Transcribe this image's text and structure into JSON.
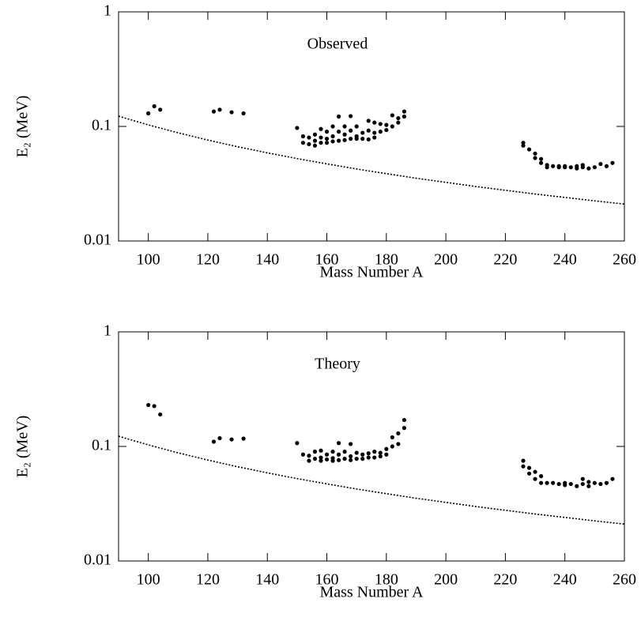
{
  "chart_data": [
    {
      "type": "scatter",
      "annotation": "Observed",
      "x_label": "Mass Number A",
      "y_label": "E₂   (MeV)",
      "xlim": [
        90,
        260
      ],
      "xticks": [
        100,
        120,
        140,
        160,
        180,
        200,
        220,
        240,
        260
      ],
      "ylim": [
        0.01,
        1
      ],
      "yticks": [
        0.01,
        0.1,
        1
      ],
      "log_y": true,
      "series": [
        {
          "mode": "markers",
          "color": "#000000",
          "x": [
            100,
            102,
            104,
            122,
            124,
            128,
            132,
            150,
            152,
            152,
            154,
            154,
            156,
            156,
            156,
            158,
            158,
            158,
            160,
            160,
            160,
            162,
            162,
            162,
            164,
            164,
            164,
            166,
            166,
            166,
            168,
            168,
            168,
            170,
            170,
            170,
            172,
            172,
            174,
            174,
            174,
            176,
            176,
            176,
            178,
            178,
            180,
            180,
            182,
            182,
            184,
            184,
            186,
            186,
            226,
            226,
            228,
            230,
            230,
            232,
            232,
            234,
            234,
            236,
            238,
            238,
            240,
            240,
            242,
            244,
            244,
            246,
            246,
            248,
            250,
            252,
            254,
            256
          ],
          "values": [
            0.13,
            0.15,
            0.14,
            0.135,
            0.14,
            0.133,
            0.13,
            0.097,
            0.082,
            0.072,
            0.08,
            0.07,
            0.085,
            0.075,
            0.068,
            0.095,
            0.08,
            0.072,
            0.09,
            0.078,
            0.072,
            0.1,
            0.082,
            0.074,
            0.122,
            0.09,
            0.075,
            0.1,
            0.085,
            0.076,
            0.123,
            0.092,
            0.078,
            0.1,
            0.082,
            0.078,
            0.088,
            0.078,
            0.112,
            0.092,
            0.077,
            0.108,
            0.088,
            0.08,
            0.105,
            0.09,
            0.103,
            0.093,
            0.125,
            0.1,
            0.118,
            0.108,
            0.135,
            0.122,
            0.072,
            0.068,
            0.063,
            0.058,
            0.053,
            0.052,
            0.048,
            0.046,
            0.044,
            0.045,
            0.045,
            0.044,
            0.045,
            0.044,
            0.044,
            0.045,
            0.043,
            0.046,
            0.044,
            0.043,
            0.044,
            0.047,
            0.045,
            0.048
          ]
        },
        {
          "mode": "dotted-line",
          "color": "#000000",
          "x": [
            90,
            100,
            110,
            120,
            130,
            140,
            150,
            160,
            170,
            180,
            190,
            200,
            210,
            220,
            230,
            240,
            250,
            260
          ],
          "values": [
            0.1229,
            0.1031,
            0.088,
            0.076,
            0.0665,
            0.0588,
            0.0524,
            0.0471,
            0.0425,
            0.0387,
            0.0353,
            0.0325,
            0.0299,
            0.0277,
            0.0257,
            0.024,
            0.0224,
            0.021
          ]
        }
      ]
    },
    {
      "type": "scatter",
      "annotation": "Theory",
      "x_label": "Mass Number A",
      "y_label": "E₂   (MeV)",
      "xlim": [
        90,
        260
      ],
      "xticks": [
        100,
        120,
        140,
        160,
        180,
        200,
        220,
        240,
        260
      ],
      "ylim": [
        0.01,
        1
      ],
      "yticks": [
        0.01,
        0.1,
        1
      ],
      "log_y": true,
      "series": [
        {
          "mode": "markers",
          "color": "#000000",
          "x": [
            100,
            102,
            104,
            122,
            124,
            128,
            132,
            150,
            152,
            154,
            154,
            156,
            156,
            158,
            158,
            158,
            160,
            160,
            162,
            162,
            162,
            164,
            164,
            164,
            166,
            166,
            168,
            168,
            168,
            170,
            170,
            172,
            172,
            174,
            174,
            176,
            176,
            178,
            178,
            180,
            180,
            182,
            182,
            184,
            184,
            186,
            186,
            226,
            226,
            228,
            228,
            230,
            230,
            232,
            232,
            234,
            236,
            238,
            240,
            240,
            242,
            244,
            246,
            246,
            248,
            248,
            250,
            252,
            254,
            256
          ],
          "values": [
            0.23,
            0.225,
            0.19,
            0.11,
            0.118,
            0.115,
            0.117,
            0.107,
            0.085,
            0.083,
            0.075,
            0.09,
            0.078,
            0.092,
            0.08,
            0.075,
            0.085,
            0.077,
            0.09,
            0.079,
            0.075,
            0.107,
            0.085,
            0.076,
            0.09,
            0.078,
            0.105,
            0.082,
            0.076,
            0.088,
            0.078,
            0.085,
            0.078,
            0.087,
            0.08,
            0.09,
            0.08,
            0.088,
            0.082,
            0.095,
            0.085,
            0.12,
            0.1,
            0.13,
            0.105,
            0.17,
            0.145,
            0.075,
            0.067,
            0.058,
            0.065,
            0.06,
            0.052,
            0.055,
            0.048,
            0.048,
            0.048,
            0.047,
            0.048,
            0.046,
            0.047,
            0.045,
            0.052,
            0.047,
            0.045,
            0.049,
            0.048,
            0.047,
            0.048,
            0.052
          ]
        },
        {
          "mode": "dotted-line",
          "color": "#000000",
          "x": [
            90,
            100,
            110,
            120,
            130,
            140,
            150,
            160,
            170,
            180,
            190,
            200,
            210,
            220,
            230,
            240,
            250,
            260
          ],
          "values": [
            0.1229,
            0.1031,
            0.088,
            0.076,
            0.0665,
            0.0588,
            0.0524,
            0.0471,
            0.0425,
            0.0387,
            0.0353,
            0.0325,
            0.0299,
            0.0277,
            0.0257,
            0.024,
            0.0224,
            0.021
          ]
        }
      ]
    }
  ]
}
